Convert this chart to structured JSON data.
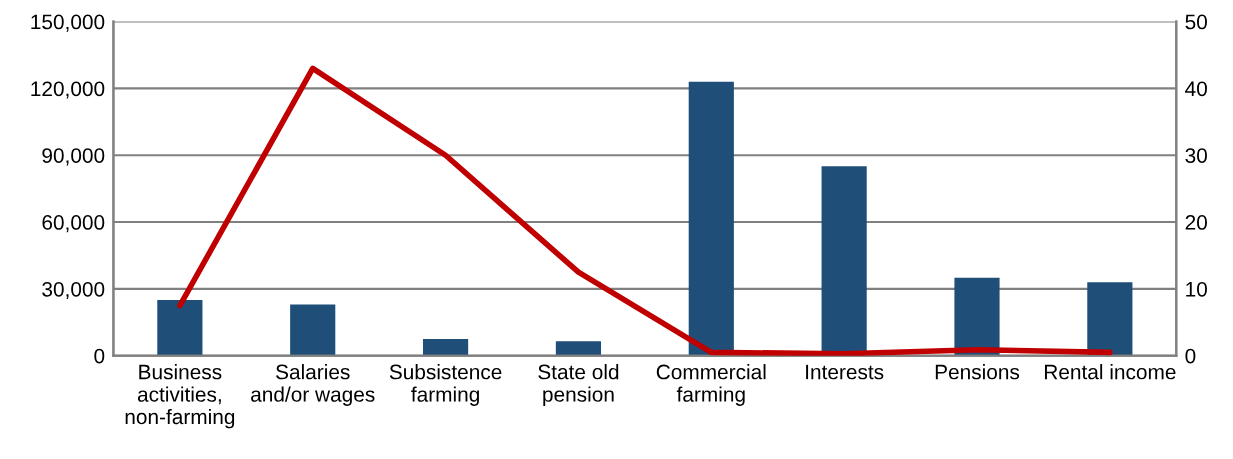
{
  "chart_data": {
    "type": "bar",
    "categories": [
      "Business\nactivities,\nnon-farming",
      "Salaries\nand/or wages",
      "Subsistence\nfarming",
      "State old\npension",
      "Commercial\nfarming",
      "Interests",
      "Pensions",
      "Rental income"
    ],
    "series": [
      {
        "color": "#1f4e79",
        "values": [
          25000,
          23000,
          7500,
          6500,
          123000,
          85000,
          35000,
          33000
        ]
      },
      {
        "type": "line",
        "axis": "y2",
        "color": "#c00000",
        "values": [
          7.5,
          43,
          30,
          12.5,
          0.5,
          0.3,
          0.9,
          0.5
        ]
      }
    ],
    "ylim": [
      0,
      150000
    ],
    "yticks": [
      {
        "value": 0,
        "label": "0"
      },
      {
        "value": 30000,
        "label": "30,000"
      },
      {
        "value": 60000,
        "label": "60,000"
      },
      {
        "value": 90000,
        "label": "90,000"
      },
      {
        "value": 120000,
        "label": "120,000"
      },
      {
        "value": 150000,
        "label": "150,000"
      }
    ],
    "y2lim": [
      0,
      50
    ],
    "y2ticks": [
      0,
      10,
      20,
      30,
      40,
      50
    ],
    "grid": "y",
    "legend": false,
    "marker": "none",
    "line_style": "solid"
  }
}
